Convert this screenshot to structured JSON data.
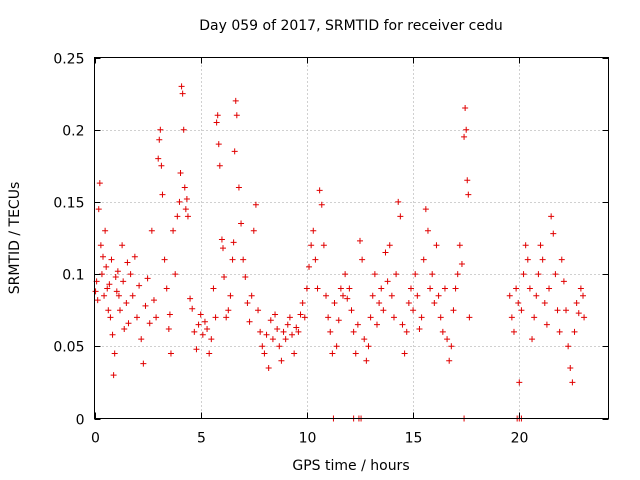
{
  "chart_data": {
    "type": "scatter",
    "title": "Day 059 of 2017, SRMTID for receiver cedu",
    "xlabel": "GPS time / hours",
    "ylabel": "SRMTID / TECUs",
    "xlim": [
      0,
      24.2
    ],
    "ylim": [
      0,
      0.25
    ],
    "x_ticks": [
      0,
      5,
      10,
      15,
      20
    ],
    "x_tick_labels": [
      "0",
      "5",
      "10",
      "15",
      "20"
    ],
    "y_ticks": [
      0,
      0.05,
      0.1,
      0.15,
      0.2,
      0.25
    ],
    "y_tick_labels": [
      "0",
      "0.05",
      "0.1",
      "0.15",
      "0.2",
      "0.25"
    ],
    "grid": true,
    "marker": "plus",
    "marker_color": "#e00000",
    "series": [
      {
        "name": "SRMTID",
        "points": [
          [
            0.05,
            0.088
          ],
          [
            0.1,
            0.095
          ],
          [
            0.15,
            0.082
          ],
          [
            0.2,
            0.145
          ],
          [
            0.25,
            0.163
          ],
          [
            0.3,
            0.12
          ],
          [
            0.35,
            0.1
          ],
          [
            0.4,
            0.112
          ],
          [
            0.45,
            0.085
          ],
          [
            0.5,
            0.13
          ],
          [
            0.55,
            0.105
          ],
          [
            0.6,
            0.09
          ],
          [
            0.65,
            0.075
          ],
          [
            0.7,
            0.093
          ],
          [
            0.75,
            0.07
          ],
          [
            0.8,
            0.11
          ],
          [
            0.85,
            0.058
          ],
          [
            0.9,
            0.03
          ],
          [
            0.95,
            0.045
          ],
          [
            1.0,
            0.098
          ],
          [
            1.05,
            0.088
          ],
          [
            1.1,
            0.102
          ],
          [
            1.15,
            0.085
          ],
          [
            1.2,
            0.075
          ],
          [
            1.3,
            0.12
          ],
          [
            1.35,
            0.095
          ],
          [
            1.4,
            0.062
          ],
          [
            1.5,
            0.08
          ],
          [
            1.55,
            0.108
          ],
          [
            1.6,
            0.066
          ],
          [
            1.7,
            0.1
          ],
          [
            1.8,
            0.085
          ],
          [
            1.9,
            0.112
          ],
          [
            2.0,
            0.07
          ],
          [
            2.1,
            0.092
          ],
          [
            2.2,
            0.055
          ],
          [
            2.3,
            0.038
          ],
          [
            2.4,
            0.078
          ],
          [
            2.5,
            0.097
          ],
          [
            2.6,
            0.066
          ],
          [
            2.7,
            0.13
          ],
          [
            2.8,
            0.082
          ],
          [
            2.9,
            0.07
          ],
          [
            3.0,
            0.18
          ],
          [
            3.05,
            0.193
          ],
          [
            3.1,
            0.2
          ],
          [
            3.15,
            0.175
          ],
          [
            3.2,
            0.155
          ],
          [
            3.3,
            0.11
          ],
          [
            3.4,
            0.09
          ],
          [
            3.5,
            0.062
          ],
          [
            3.55,
            0.072
          ],
          [
            3.6,
            0.045
          ],
          [
            3.7,
            0.13
          ],
          [
            3.8,
            0.1
          ],
          [
            3.9,
            0.14
          ],
          [
            4.0,
            0.15
          ],
          [
            4.05,
            0.17
          ],
          [
            4.1,
            0.23
          ],
          [
            4.15,
            0.225
          ],
          [
            4.2,
            0.2
          ],
          [
            4.25,
            0.16
          ],
          [
            4.3,
            0.145
          ],
          [
            4.35,
            0.152
          ],
          [
            4.4,
            0.14
          ],
          [
            4.5,
            0.083
          ],
          [
            4.6,
            0.076
          ],
          [
            4.7,
            0.06
          ],
          [
            4.8,
            0.048
          ],
          [
            4.9,
            0.065
          ],
          [
            5.0,
            0.072
          ],
          [
            5.1,
            0.058
          ],
          [
            5.2,
            0.067
          ],
          [
            5.3,
            0.062
          ],
          [
            5.4,
            0.045
          ],
          [
            5.5,
            0.055
          ],
          [
            5.6,
            0.09
          ],
          [
            5.7,
            0.07
          ],
          [
            5.75,
            0.205
          ],
          [
            5.8,
            0.21
          ],
          [
            5.85,
            0.19
          ],
          [
            5.9,
            0.175
          ],
          [
            6.0,
            0.124
          ],
          [
            6.05,
            0.118
          ],
          [
            6.1,
            0.098
          ],
          [
            6.2,
            0.07
          ],
          [
            6.3,
            0.075
          ],
          [
            6.4,
            0.085
          ],
          [
            6.5,
            0.11
          ],
          [
            6.55,
            0.122
          ],
          [
            6.6,
            0.185
          ],
          [
            6.65,
            0.22
          ],
          [
            6.7,
            0.21
          ],
          [
            6.8,
            0.16
          ],
          [
            6.9,
            0.135
          ],
          [
            7.0,
            0.11
          ],
          [
            7.1,
            0.098
          ],
          [
            7.2,
            0.08
          ],
          [
            7.3,
            0.067
          ],
          [
            7.4,
            0.085
          ],
          [
            7.5,
            0.13
          ],
          [
            7.6,
            0.148
          ],
          [
            7.7,
            0.075
          ],
          [
            7.8,
            0.06
          ],
          [
            7.9,
            0.05
          ],
          [
            8.0,
            0.045
          ],
          [
            8.1,
            0.058
          ],
          [
            8.2,
            0.035
          ],
          [
            8.3,
            0.068
          ],
          [
            8.4,
            0.055
          ],
          [
            8.5,
            0.072
          ],
          [
            8.6,
            0.062
          ],
          [
            8.7,
            0.05
          ],
          [
            8.8,
            0.04
          ],
          [
            8.9,
            0.06
          ],
          [
            9.0,
            0.055
          ],
          [
            9.1,
            0.065
          ],
          [
            9.2,
            0.07
          ],
          [
            9.3,
            0.058
          ],
          [
            9.4,
            0.045
          ],
          [
            9.5,
            0.063
          ],
          [
            9.6,
            0.06
          ],
          [
            9.7,
            0.072
          ],
          [
            9.8,
            0.08
          ],
          [
            9.9,
            0.07
          ],
          [
            10.0,
            0.09
          ],
          [
            10.1,
            0.105
          ],
          [
            10.2,
            0.12
          ],
          [
            10.3,
            0.13
          ],
          [
            10.4,
            0.11
          ],
          [
            10.5,
            0.09
          ],
          [
            10.6,
            0.158
          ],
          [
            10.7,
            0.148
          ],
          [
            10.8,
            0.12
          ],
          [
            10.9,
            0.085
          ],
          [
            11.0,
            0.07
          ],
          [
            11.1,
            0.06
          ],
          [
            11.2,
            0.045
          ],
          [
            11.3,
            0.08
          ],
          [
            11.4,
            0.05
          ],
          [
            11.5,
            0.068
          ],
          [
            11.6,
            0.09
          ],
          [
            11.7,
            0.085
          ],
          [
            11.8,
            0.1
          ],
          [
            11.9,
            0.083
          ],
          [
            12.0,
            0.09
          ],
          [
            12.1,
            0.075
          ],
          [
            12.2,
            0.06
          ],
          [
            12.3,
            0.045
          ],
          [
            12.4,
            0.065
          ],
          [
            12.5,
            0.123
          ],
          [
            12.6,
            0.11
          ],
          [
            12.7,
            0.055
          ],
          [
            12.8,
            0.04
          ],
          [
            12.9,
            0.05
          ],
          [
            13.0,
            0.07
          ],
          [
            13.1,
            0.085
          ],
          [
            13.2,
            0.1
          ],
          [
            13.3,
            0.065
          ],
          [
            13.4,
            0.08
          ],
          [
            13.5,
            0.09
          ],
          [
            13.6,
            0.075
          ],
          [
            13.7,
            0.115
          ],
          [
            13.8,
            0.095
          ],
          [
            13.9,
            0.12
          ],
          [
            14.0,
            0.085
          ],
          [
            14.1,
            0.07
          ],
          [
            14.2,
            0.1
          ],
          [
            14.3,
            0.15
          ],
          [
            14.4,
            0.14
          ],
          [
            14.5,
            0.065
          ],
          [
            14.6,
            0.045
          ],
          [
            14.7,
            0.06
          ],
          [
            14.8,
            0.08
          ],
          [
            14.9,
            0.09
          ],
          [
            15.0,
            0.075
          ],
          [
            15.1,
            0.1
          ],
          [
            15.2,
            0.085
          ],
          [
            15.3,
            0.062
          ],
          [
            15.4,
            0.07
          ],
          [
            15.5,
            0.11
          ],
          [
            15.6,
            0.145
          ],
          [
            15.7,
            0.13
          ],
          [
            15.8,
            0.09
          ],
          [
            15.9,
            0.1
          ],
          [
            16.0,
            0.08
          ],
          [
            16.1,
            0.12
          ],
          [
            16.2,
            0.085
          ],
          [
            16.3,
            0.07
          ],
          [
            16.4,
            0.06
          ],
          [
            16.5,
            0.09
          ],
          [
            16.6,
            0.055
          ],
          [
            16.7,
            0.04
          ],
          [
            16.8,
            0.05
          ],
          [
            16.9,
            0.075
          ],
          [
            17.0,
            0.09
          ],
          [
            17.1,
            0.1
          ],
          [
            17.2,
            0.12
          ],
          [
            17.3,
            0.107
          ],
          [
            17.4,
            0.195
          ],
          [
            17.45,
            0.215
          ],
          [
            17.5,
            0.2
          ],
          [
            17.55,
            0.165
          ],
          [
            17.6,
            0.155
          ],
          [
            17.65,
            0.07
          ],
          [
            19.55,
            0.085
          ],
          [
            19.65,
            0.07
          ],
          [
            19.75,
            0.06
          ],
          [
            19.85,
            0.09
          ],
          [
            19.95,
            0.08
          ],
          [
            20.0,
            0.025
          ],
          [
            20.1,
            0.075
          ],
          [
            20.2,
            0.1
          ],
          [
            20.3,
            0.12
          ],
          [
            20.4,
            0.11
          ],
          [
            20.5,
            0.09
          ],
          [
            20.6,
            0.055
          ],
          [
            20.7,
            0.07
          ],
          [
            20.8,
            0.085
          ],
          [
            20.9,
            0.1
          ],
          [
            21.0,
            0.12
          ],
          [
            21.1,
            0.11
          ],
          [
            21.2,
            0.08
          ],
          [
            21.3,
            0.065
          ],
          [
            21.4,
            0.09
          ],
          [
            21.5,
            0.14
          ],
          [
            21.6,
            0.128
          ],
          [
            21.7,
            0.1
          ],
          [
            21.8,
            0.075
          ],
          [
            21.9,
            0.06
          ],
          [
            22.0,
            0.11
          ],
          [
            22.1,
            0.095
          ],
          [
            22.2,
            0.075
          ],
          [
            22.3,
            0.05
          ],
          [
            22.4,
            0.035
          ],
          [
            22.5,
            0.025
          ],
          [
            22.6,
            0.06
          ],
          [
            22.7,
            0.08
          ],
          [
            22.8,
            0.073
          ],
          [
            22.9,
            0.09
          ],
          [
            23.0,
            0.085
          ],
          [
            23.05,
            0.07
          ],
          [
            11.25,
            0
          ],
          [
            12.2,
            0
          ],
          [
            12.45,
            0
          ],
          [
            12.55,
            0
          ],
          [
            17.4,
            0
          ],
          [
            19.9,
            0
          ],
          [
            20.0,
            0
          ],
          [
            20.1,
            0
          ]
        ]
      }
    ]
  }
}
